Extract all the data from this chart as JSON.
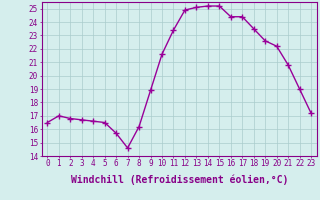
{
  "hours": [
    0,
    1,
    2,
    3,
    4,
    5,
    6,
    7,
    8,
    9,
    10,
    11,
    12,
    13,
    14,
    15,
    16,
    17,
    18,
    19,
    20,
    21,
    22,
    23
  ],
  "values": [
    16.5,
    17.0,
    16.8,
    16.7,
    16.6,
    16.5,
    15.7,
    14.6,
    16.2,
    18.9,
    21.6,
    23.4,
    24.9,
    25.1,
    25.2,
    25.2,
    24.4,
    24.4,
    23.5,
    22.6,
    22.2,
    20.8,
    19.0,
    17.2
  ],
  "line_color": "#990099",
  "marker": "+",
  "markersize": 4,
  "markeredgewidth": 1.0,
  "linewidth": 1.0,
  "bg_color": "#d5eeed",
  "grid_color": "#aacccc",
  "xlabel": "Windchill (Refroidissement éolien,°C)",
  "xlim": [
    -0.5,
    23.5
  ],
  "ylim": [
    14,
    25.5
  ],
  "yticks": [
    14,
    15,
    16,
    17,
    18,
    19,
    20,
    21,
    22,
    23,
    24,
    25
  ],
  "xticks": [
    0,
    1,
    2,
    3,
    4,
    5,
    6,
    7,
    8,
    9,
    10,
    11,
    12,
    13,
    14,
    15,
    16,
    17,
    18,
    19,
    20,
    21,
    22,
    23
  ],
  "tick_fontsize": 5.5,
  "label_fontsize": 7.0,
  "tick_color": "#880088",
  "axis_color": "#880088"
}
